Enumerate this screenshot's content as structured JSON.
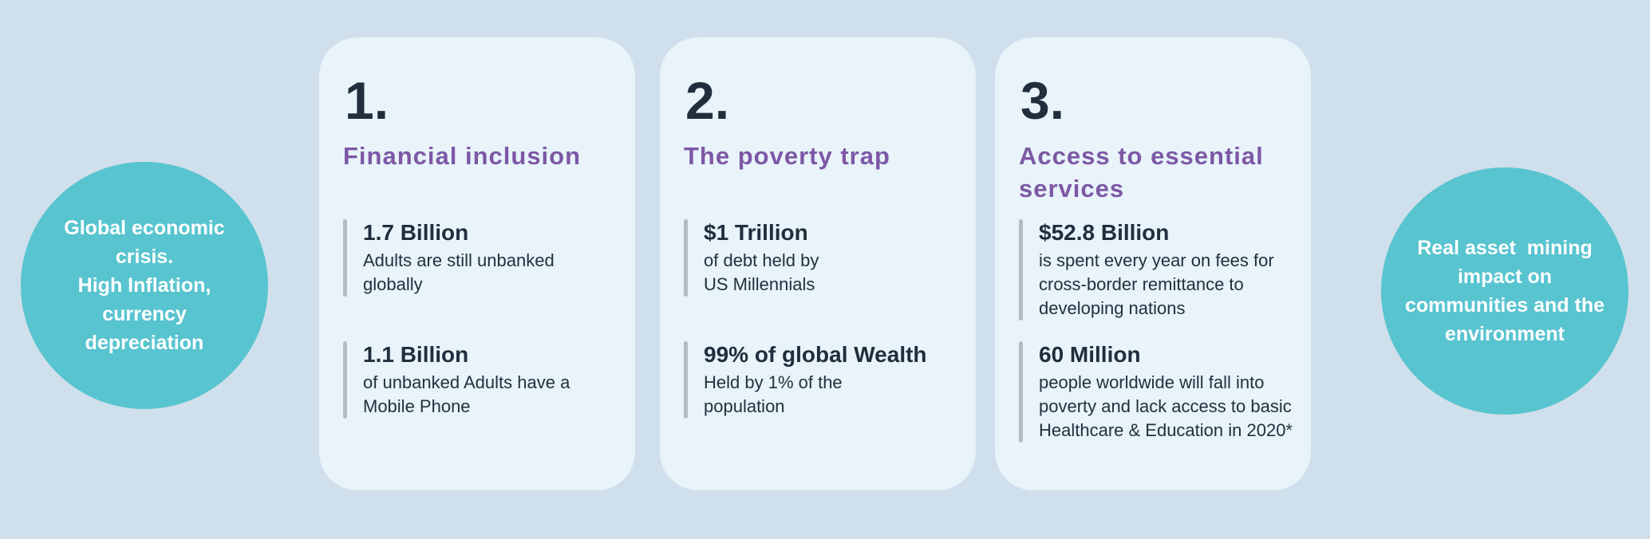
{
  "colors": {
    "background": "#cfdfeb",
    "card_background": "#e8f3fa",
    "circle_background": "#58c4cf",
    "circle_text": "#ffffff",
    "heading_purple": "#7d58a5",
    "text_dark": "#212e3c",
    "stat_bar_gray": "#b2bcc4"
  },
  "left_circle": {
    "text": "Global economic\ncrisis.\nHigh Inflation,\ncurrency\ndepreciation"
  },
  "right_circle": {
    "text": "Real asset  mining\nimpact on\ncommunities and the\nenvironment"
  },
  "cards": [
    {
      "number": "1.",
      "title": "Financial inclusion",
      "stats": [
        {
          "value": "1.7 Billion",
          "description": "Adults are still unbanked\nglobally"
        },
        {
          "value": "1.1 Billion",
          "description": "of unbanked Adults have a\nMobile Phone"
        }
      ]
    },
    {
      "number": "2.",
      "title": "The poverty trap",
      "stats": [
        {
          "value": "$1 Trillion",
          "description": "of debt held by\nUS Millennials"
        },
        {
          "value": "99% of global Wealth",
          "description": "Held by 1% of the\npopulation"
        }
      ]
    },
    {
      "number": "3.",
      "title": "Access to essential\nservices",
      "stats": [
        {
          "value": "$52.8 Billion",
          "description": "is spent every year on fees for\ncross-border remittance to\ndeveloping nations"
        },
        {
          "value": "60 Million",
          "description": "people worldwide will fall into\npoverty and lack access to basic\nHealthcare & Education in 2020*"
        }
      ]
    }
  ]
}
